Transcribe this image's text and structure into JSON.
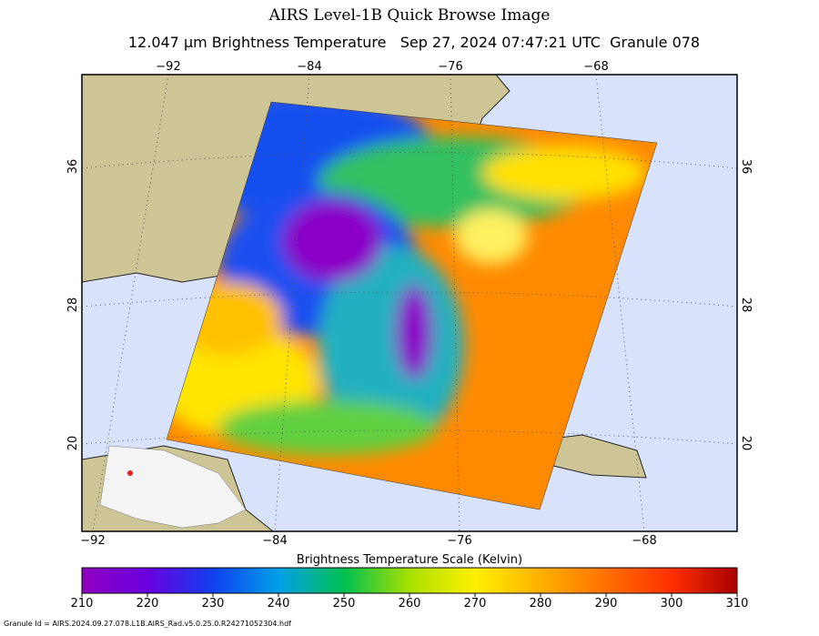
{
  "title": "AIRS Level-1B Quick Browse Image",
  "subtitle": "12.047 μm Brightness Temperature   Sep 27, 2024 07:47:21 UTC  Granule 078",
  "map": {
    "lon_labels_top": [
      "−92",
      "−84",
      "−76",
      "−68"
    ],
    "lon_labels_bottom": [
      "−92",
      "−84",
      "−76",
      "−68"
    ],
    "lat_labels_left": [
      "36",
      "28",
      "20"
    ],
    "lat_labels_right": [
      "36",
      "28",
      "20"
    ]
  },
  "colorbar": {
    "title": "Brightness Temperature Scale (Kelvin)",
    "ticks": [
      210,
      220,
      230,
      240,
      250,
      260,
      270,
      280,
      290,
      300,
      310
    ]
  },
  "footer": "Granule Id = AIRS.2024.09.27.078.L1B.AIRS_Rad.v5.0.25.0.R24271052304.hdf"
}
